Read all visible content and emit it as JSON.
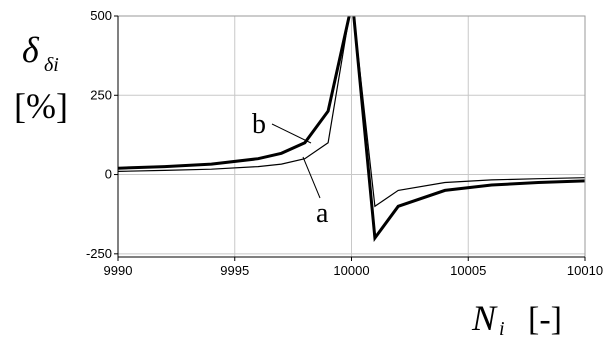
{
  "chart_data": {
    "type": "line",
    "y_label": {
      "symbol": "δ",
      "subscript": "δi",
      "unit": "[%]"
    },
    "x_label": {
      "symbol": "N",
      "subscript": "i",
      "unit": "[-]"
    },
    "xlim": [
      9990,
      10010
    ],
    "ylim": [
      -260,
      500
    ],
    "x_ticks": [
      "9990",
      "9995",
      "10000",
      "10005",
      "10010"
    ],
    "x_tick_values": [
      9990,
      9995,
      10000,
      10005,
      10010
    ],
    "y_ticks": [
      "-250",
      "0",
      "250",
      "500"
    ],
    "y_tick_values": [
      -250,
      0,
      250,
      500
    ],
    "grid": true,
    "series": [
      {
        "name": "a",
        "color": "#000000",
        "thick": false,
        "points": [
          [
            9990,
            10
          ],
          [
            9992,
            13
          ],
          [
            9994,
            17
          ],
          [
            9996,
            25
          ],
          [
            9997,
            33
          ],
          [
            9998,
            50
          ],
          [
            9999,
            100
          ],
          [
            9999.9,
            500
          ]
        ],
        "points_right": [
          [
            10000.1,
            500
          ],
          [
            10001,
            -100
          ],
          [
            10002,
            -50
          ],
          [
            10004,
            -25
          ],
          [
            10006,
            -17
          ],
          [
            10008,
            -13
          ],
          [
            10010,
            -10
          ]
        ]
      },
      {
        "name": "b",
        "color": "#000000",
        "thick": true,
        "points": [
          [
            9990,
            20
          ],
          [
            9992,
            25
          ],
          [
            9994,
            33
          ],
          [
            9996,
            50
          ],
          [
            9997,
            67
          ],
          [
            9998,
            100
          ],
          [
            9999,
            200
          ],
          [
            9999.9,
            500
          ]
        ],
        "points_right": [
          [
            10000.1,
            500
          ],
          [
            10001,
            -200
          ],
          [
            10002,
            -100
          ],
          [
            10004,
            -50
          ],
          [
            10006,
            -33
          ],
          [
            10008,
            -25
          ],
          [
            10010,
            -20
          ]
        ]
      }
    ],
    "annotations": [
      {
        "text": "b",
        "series": "b"
      },
      {
        "text": "a",
        "series": "a"
      }
    ]
  }
}
